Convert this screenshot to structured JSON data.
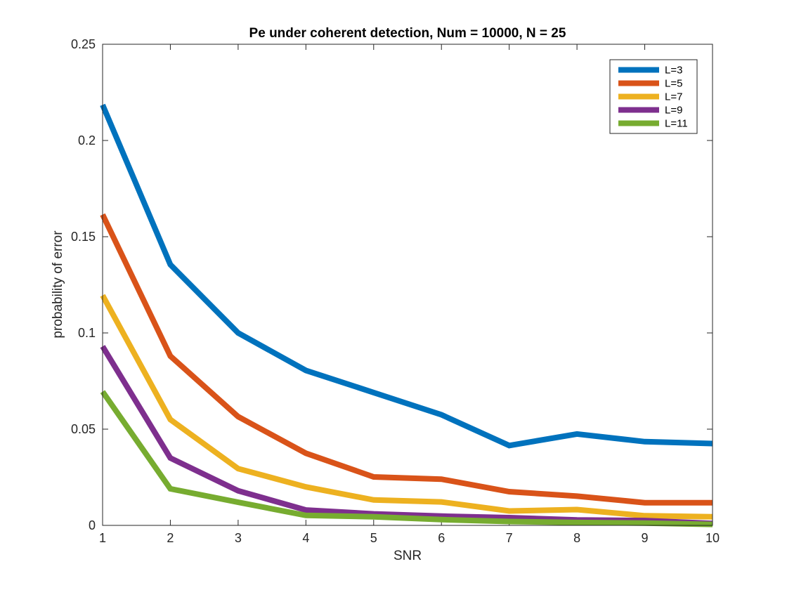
{
  "chart_data": {
    "type": "line",
    "title": "Pe under coherent detection, Num = 10000, N = 25",
    "xlabel": "SNR",
    "ylabel": "probability of error",
    "xlim": [
      1,
      10
    ],
    "ylim": [
      0,
      0.25
    ],
    "xticks": [
      1,
      2,
      3,
      4,
      5,
      6,
      7,
      8,
      9,
      10
    ],
    "yticks": [
      0,
      0.05,
      0.1,
      0.15,
      0.2,
      0.25
    ],
    "ytick_labels": [
      "0",
      "0.05",
      "0.1",
      "0.15",
      "0.2",
      "0.25"
    ],
    "grid": false,
    "legend_position": "top-right",
    "x": [
      1,
      2,
      3,
      4,
      5,
      6,
      7,
      8,
      9,
      10
    ],
    "series": [
      {
        "name": "L=3",
        "color": "#0072BD",
        "values": [
          0.2185,
          0.1355,
          0.1,
          0.0805,
          0.069,
          0.0575,
          0.0415,
          0.0475,
          0.0435,
          0.0425
        ]
      },
      {
        "name": "L=5",
        "color": "#D95319",
        "values": [
          0.1615,
          0.088,
          0.0565,
          0.0375,
          0.0252,
          0.024,
          0.0175,
          0.0152,
          0.0118,
          0.0118
        ]
      },
      {
        "name": "L=7",
        "color": "#EDB120",
        "values": [
          0.1195,
          0.055,
          0.0295,
          0.02,
          0.0132,
          0.0122,
          0.0075,
          0.0082,
          0.005,
          0.0045
        ]
      },
      {
        "name": "L=9",
        "color": "#7E2F8E",
        "values": [
          0.093,
          0.035,
          0.018,
          0.008,
          0.006,
          0.0048,
          0.004,
          0.0028,
          0.0025,
          0.001
        ]
      },
      {
        "name": "L=11",
        "color": "#77AC30",
        "values": [
          0.0695,
          0.019,
          0.012,
          0.0052,
          0.0045,
          0.003,
          0.002,
          0.0015,
          0.0012,
          0.0005
        ]
      }
    ]
  }
}
